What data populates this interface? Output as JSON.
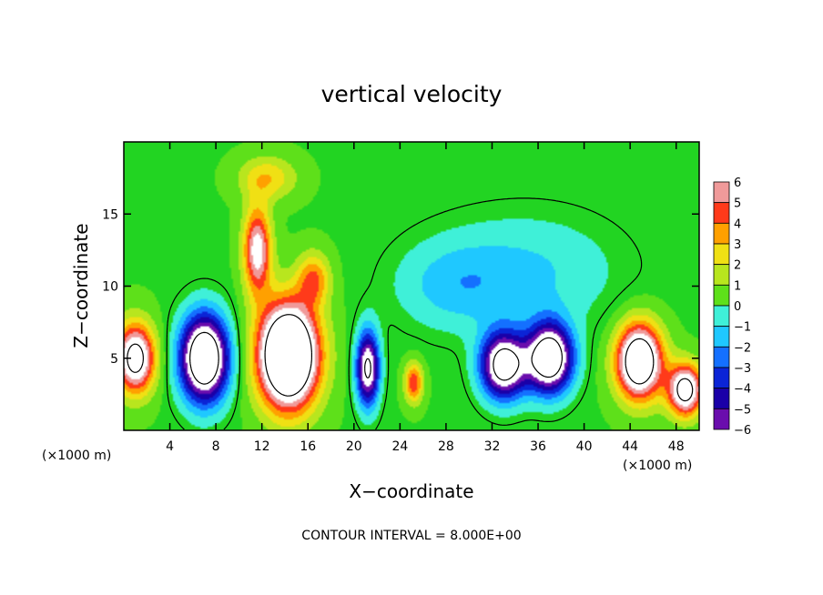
{
  "chart_data": {
    "type": "heatmap",
    "title": "vertical velocity",
    "xlabel": "X−coordinate",
    "ylabel": "Z−coordinate",
    "x_unit_label": "(×1000 m)",
    "x_unit_label_right": "(×1000 m)",
    "xlim": [
      0,
      50
    ],
    "ylim": [
      0,
      20
    ],
    "x_ticks": [
      4,
      8,
      12,
      16,
      20,
      24,
      28,
      32,
      36,
      40,
      44,
      48
    ],
    "y_ticks": [
      5,
      10,
      15
    ],
    "colorbar": {
      "ticks": [
        "6",
        "5",
        "4",
        "3",
        "2",
        "1",
        "0",
        "−1",
        "−2",
        "−3",
        "−4",
        "−5",
        "−6"
      ],
      "values": [
        6,
        5,
        4,
        3,
        2,
        1,
        0,
        -1,
        -2,
        -3,
        -4,
        -5,
        -6
      ],
      "range": [
        -6,
        6
      ]
    },
    "background_value": 0.4,
    "features": [
      {
        "x": 1.0,
        "z": 5.0,
        "value": 9.0,
        "sx": 1.7,
        "sz": 2.4
      },
      {
        "x": 7.0,
        "z": 5.0,
        "value": -12.0,
        "sx": 2.1,
        "sz": 3.0
      },
      {
        "x": 11.6,
        "z": 12.5,
        "value": 7.0,
        "sx": 1.2,
        "sz": 3.0
      },
      {
        "x": 14.3,
        "z": 5.2,
        "value": 14.0,
        "sx": 2.6,
        "sz": 3.6
      },
      {
        "x": 16.5,
        "z": 10.5,
        "value": 4.0,
        "sx": 1.4,
        "sz": 1.8
      },
      {
        "x": 21.2,
        "z": 4.3,
        "value": -9.0,
        "sx": 1.0,
        "sz": 2.6
      },
      {
        "x": 25.2,
        "z": 3.3,
        "value": 5.0,
        "sx": 0.8,
        "sz": 1.4
      },
      {
        "x": 28.5,
        "z": 10.0,
        "value": -1.8,
        "sx": 5.0,
        "sz": 3.0
      },
      {
        "x": 33.0,
        "z": 4.5,
        "value": -10.0,
        "sx": 2.0,
        "sz": 2.3
      },
      {
        "x": 37.0,
        "z": 5.0,
        "value": -11.0,
        "sx": 2.0,
        "sz": 2.4
      },
      {
        "x": 35.0,
        "z": 11.0,
        "value": -2.0,
        "sx": 8.0,
        "sz": 4.0
      },
      {
        "x": 44.8,
        "z": 4.8,
        "value": 11.0,
        "sx": 2.0,
        "sz": 2.6
      },
      {
        "x": 48.8,
        "z": 2.8,
        "value": 9.0,
        "sx": 1.5,
        "sz": 1.8
      },
      {
        "x": 12.5,
        "z": 17.5,
        "value": 3.0,
        "sx": 2.5,
        "sz": 1.5
      }
    ],
    "contour_interval_note": "CONTOUR INTERVAL = 8.000E+00"
  }
}
